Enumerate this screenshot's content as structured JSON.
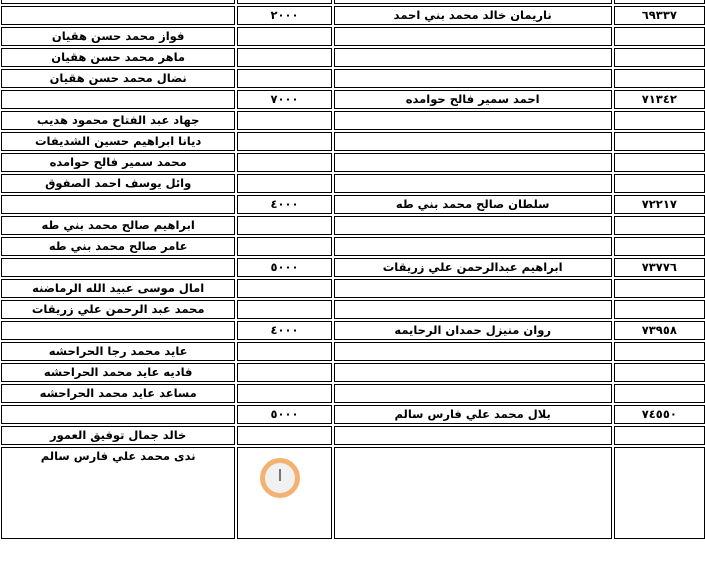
{
  "rows": [
    {
      "dependent": "",
      "amount": "",
      "name": "",
      "number": ""
    },
    {
      "dependent": "",
      "amount": "٢٠٠٠",
      "name": "ناريمان خالد محمد بني احمد",
      "number": "٦٩٣٣٧"
    },
    {
      "dependent": "فواز محمد حسن هقيان",
      "amount": "",
      "name": "",
      "number": ""
    },
    {
      "dependent": "ماهر محمد حسن هقيان",
      "amount": "",
      "name": "",
      "number": ""
    },
    {
      "dependent": "نضال محمد حسن هقيان",
      "amount": "",
      "name": "",
      "number": ""
    },
    {
      "dependent": "",
      "amount": "٧٠٠٠",
      "name": "احمد سمير فالح حوامده",
      "number": "٧١٣٤٢"
    },
    {
      "dependent": "جهاد عبد الفتاح محمود هديب",
      "amount": "",
      "name": "",
      "number": ""
    },
    {
      "dependent": "ديانا ابراهيم حسين الشديفات",
      "amount": "",
      "name": "",
      "number": ""
    },
    {
      "dependent": "محمد سمير فالح حوامده",
      "amount": "",
      "name": "",
      "number": ""
    },
    {
      "dependent": "وائل يوسف احمد الصفوق",
      "amount": "",
      "name": "",
      "number": ""
    },
    {
      "dependent": "",
      "amount": "٤٠٠٠",
      "name": "سلطان صالح محمد بني طه",
      "number": "٧٢٢١٧"
    },
    {
      "dependent": "ابراهيم صالح محمد بني طه",
      "amount": "",
      "name": "",
      "number": ""
    },
    {
      "dependent": "عامر صالح محمد بني طه",
      "amount": "",
      "name": "",
      "number": ""
    },
    {
      "dependent": "",
      "amount": "٥٠٠٠",
      "name": "ابراهيم عبدالرحمن علي زريقات",
      "number": "٧٣٧٧٦"
    },
    {
      "dependent": "امال موسى عبيد الله الرماضنه",
      "amount": "",
      "name": "",
      "number": ""
    },
    {
      "dependent": "محمد عبد الرحمن علي زريقات",
      "amount": "",
      "name": "",
      "number": ""
    },
    {
      "dependent": "",
      "amount": "٤٠٠٠",
      "name": "روان منيزل حمدان الرحايمه",
      "number": "٧٣٩٥٨"
    },
    {
      "dependent": "عايد محمد رجا الحراحشه",
      "amount": "",
      "name": "",
      "number": ""
    },
    {
      "dependent": "فاديه عايد محمد الحراحشه",
      "amount": "",
      "name": "",
      "number": ""
    },
    {
      "dependent": "مساعد عايد محمد الحراحشه",
      "amount": "",
      "name": "",
      "number": ""
    },
    {
      "dependent": "",
      "amount": "٥٠٠٠",
      "name": "بلال محمد علي فارس سالم",
      "number": "٧٤٥٥٠"
    },
    {
      "dependent": "خالد جمال توفيق العمور",
      "amount": "",
      "name": "",
      "number": ""
    },
    {
      "dependent": "ندى محمد علي فارس سالم",
      "amount": "",
      "name": "",
      "number": ""
    }
  ],
  "watermark": "clock-logo",
  "colors": {
    "border": "#000000",
    "logo": "#f0a050"
  }
}
